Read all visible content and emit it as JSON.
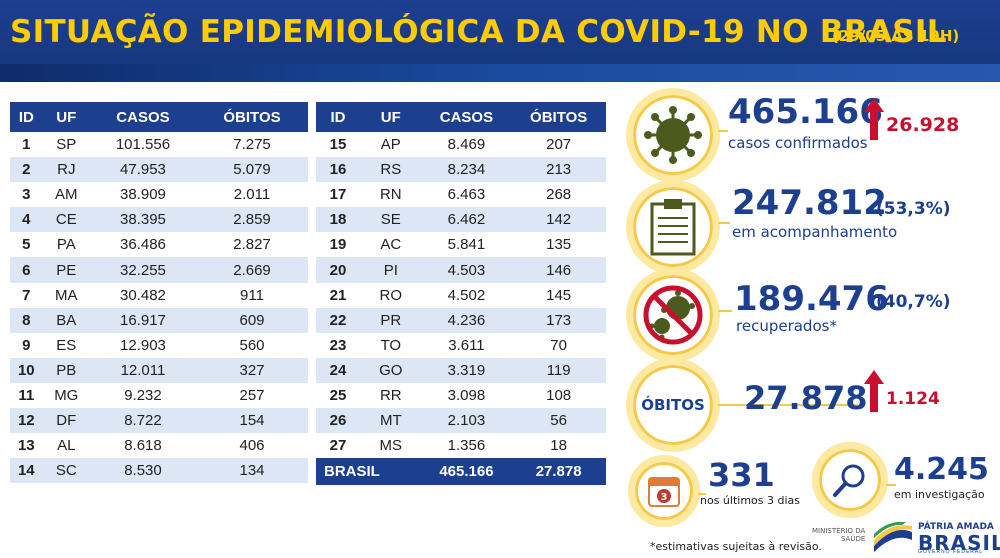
{
  "header": {
    "title": "SITUAÇÃO EPIDEMIOLÓGICA DA COVID-19 NO BRASIL",
    "date": "(29/05 ÀS 19H)"
  },
  "table_headers": {
    "id": "ID",
    "uf": "UF",
    "cases": "CASOS",
    "deaths": "ÓBITOS"
  },
  "table_left": [
    {
      "id": "1",
      "uf": "SP",
      "cases": "101.556",
      "deaths": "7.275"
    },
    {
      "id": "2",
      "uf": "RJ",
      "cases": "47.953",
      "deaths": "5.079"
    },
    {
      "id": "3",
      "uf": "AM",
      "cases": "38.909",
      "deaths": "2.011"
    },
    {
      "id": "4",
      "uf": "CE",
      "cases": "38.395",
      "deaths": "2.859"
    },
    {
      "id": "5",
      "uf": "PA",
      "cases": "36.486",
      "deaths": "2.827"
    },
    {
      "id": "6",
      "uf": "PE",
      "cases": "32.255",
      "deaths": "2.669"
    },
    {
      "id": "7",
      "uf": "MA",
      "cases": "30.482",
      "deaths": "911"
    },
    {
      "id": "8",
      "uf": "BA",
      "cases": "16.917",
      "deaths": "609"
    },
    {
      "id": "9",
      "uf": "ES",
      "cases": "12.903",
      "deaths": "560"
    },
    {
      "id": "10",
      "uf": "PB",
      "cases": "12.011",
      "deaths": "327"
    },
    {
      "id": "11",
      "uf": "MG",
      "cases": "9.232",
      "deaths": "257"
    },
    {
      "id": "12",
      "uf": "DF",
      "cases": "8.722",
      "deaths": "154"
    },
    {
      "id": "13",
      "uf": "AL",
      "cases": "8.618",
      "deaths": "406"
    },
    {
      "id": "14",
      "uf": "SC",
      "cases": "8.530",
      "deaths": "134"
    }
  ],
  "table_right": [
    {
      "id": "15",
      "uf": "AP",
      "cases": "8.469",
      "deaths": "207"
    },
    {
      "id": "16",
      "uf": "RS",
      "cases": "8.234",
      "deaths": "213"
    },
    {
      "id": "17",
      "uf": "RN",
      "cases": "6.463",
      "deaths": "268"
    },
    {
      "id": "18",
      "uf": "SE",
      "cases": "6.462",
      "deaths": "142"
    },
    {
      "id": "19",
      "uf": "AC",
      "cases": "5.841",
      "deaths": "135"
    },
    {
      "id": "20",
      "uf": "PI",
      "cases": "4.503",
      "deaths": "146"
    },
    {
      "id": "21",
      "uf": "RO",
      "cases": "4.502",
      "deaths": "145"
    },
    {
      "id": "22",
      "uf": "PR",
      "cases": "4.236",
      "deaths": "173"
    },
    {
      "id": "23",
      "uf": "TO",
      "cases": "3.611",
      "deaths": "70"
    },
    {
      "id": "24",
      "uf": "GO",
      "cases": "3.319",
      "deaths": "119"
    },
    {
      "id": "25",
      "uf": "RR",
      "cases": "3.098",
      "deaths": "108"
    },
    {
      "id": "26",
      "uf": "MT",
      "cases": "2.103",
      "deaths": "56"
    },
    {
      "id": "27",
      "uf": "MS",
      "cases": "1.356",
      "deaths": "18"
    }
  ],
  "total": {
    "label": "BRASIL",
    "cases": "465.166",
    "deaths": "27.878"
  },
  "stats": {
    "confirmed": {
      "value": "465.166",
      "label": "casos confirmados",
      "increase": "26.928",
      "icon": "virus-icon"
    },
    "monitoring": {
      "value": "247.812",
      "label": "em acompanhamento",
      "pct": "(53,3%)",
      "icon": "clipboard-icon"
    },
    "recovered": {
      "value": "189.476",
      "label": "recuperados*",
      "pct": "(40,7%)",
      "icon": "no-virus-icon"
    },
    "deaths": {
      "badge": "ÓBITOS",
      "value": "27.878",
      "increase": "1.124"
    },
    "recent_deaths": {
      "value": "331",
      "label": "nos últimos 3 dias",
      "calendar_number": "3",
      "icon": "calendar-icon"
    },
    "investigation": {
      "value": "4.245",
      "label": "em investigação",
      "icon": "magnifier-icon"
    }
  },
  "colors": {
    "navy": "#1d3f8f",
    "yellow": "#ffcc00",
    "red": "#c8102e",
    "row_alt": "#dce6f4",
    "olive": "#4d5a1e"
  },
  "footer": {
    "note": "*estimativas sujeitas à revisão.",
    "ministry_line1": "MINISTÉRIO DA",
    "ministry_line2": "SAÚDE",
    "brand_top": "PÁTRIA AMADA",
    "brand_main": "BRASIL",
    "brand_sub": "GOVERNO FEDERAL"
  }
}
